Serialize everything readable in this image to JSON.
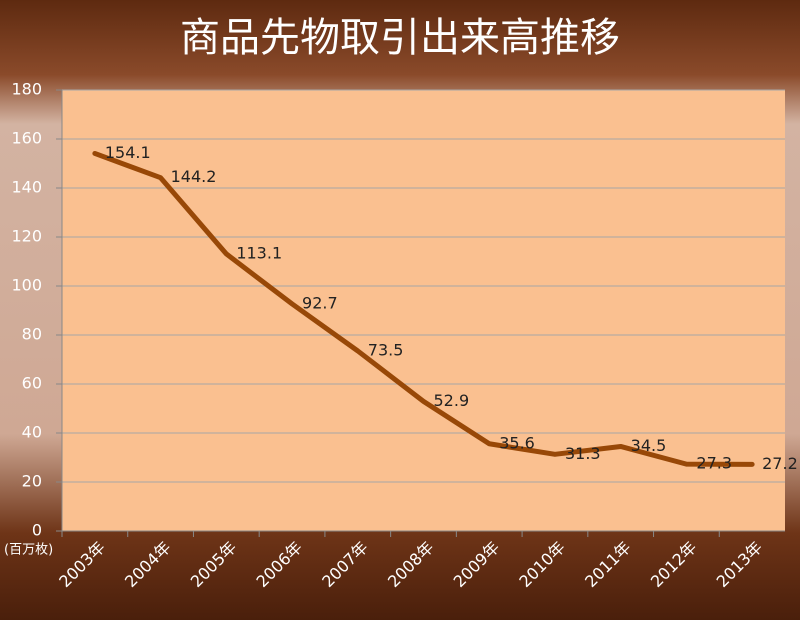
{
  "chart_data": {
    "type": "line",
    "title": "商品先物取引出来高推移",
    "unit_label": "(百万枚)",
    "categories": [
      "2003年",
      "2004年",
      "2005年",
      "2006年",
      "2007年",
      "2008年",
      "2009年",
      "2010年",
      "2011年",
      "2012年",
      "2013年"
    ],
    "values": [
      154.1,
      144.2,
      113.1,
      92.7,
      73.5,
      52.9,
      35.6,
      31.3,
      34.5,
      27.3,
      27.2
    ],
    "color": "#984807",
    "ylim": [
      0,
      180
    ],
    "yticks": [
      0,
      20,
      40,
      60,
      80,
      100,
      120,
      140,
      160,
      180
    ],
    "grid": true
  }
}
